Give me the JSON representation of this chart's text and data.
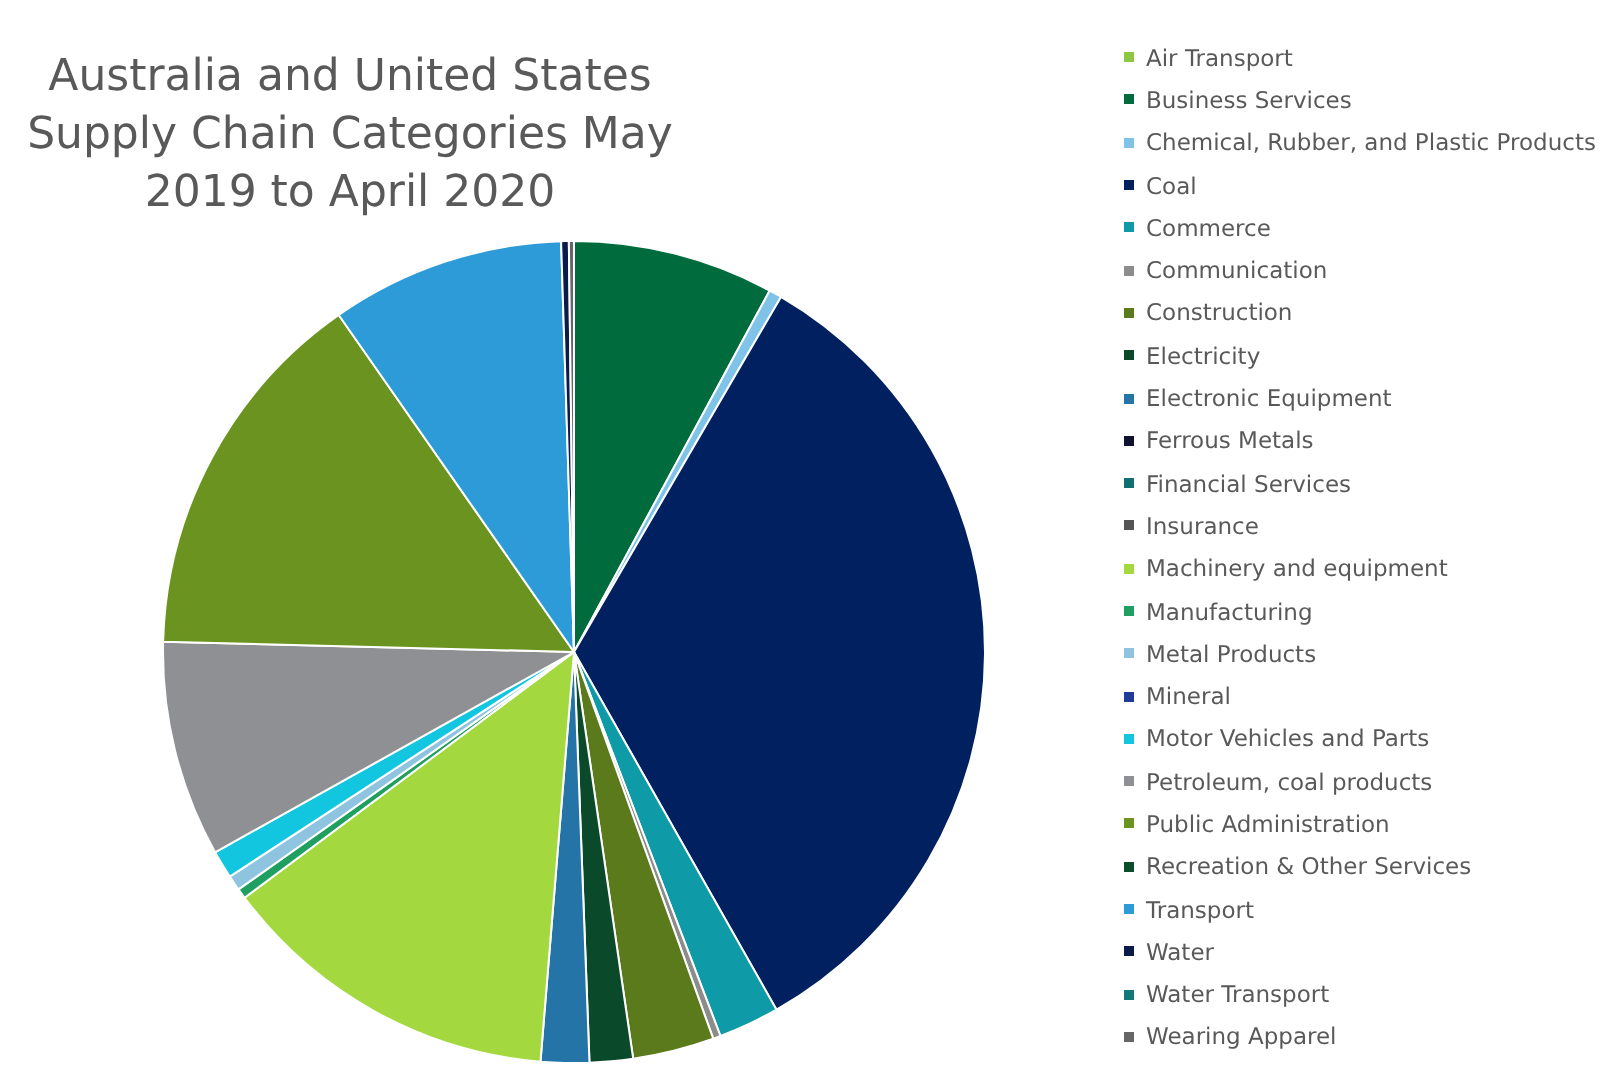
{
  "chart_data": {
    "type": "pie",
    "title": "Australia and United States Supply Chain Categories May 2019 to April 2020",
    "categories": [
      "Air Transport",
      "Business Services",
      "Chemical, Rubber, and Plastic Products",
      "Coal",
      "Commerce",
      "Communication",
      "Construction",
      "Electricity",
      "Electronic Equipment",
      "Ferrous Metals",
      "Financial Services",
      "Insurance",
      "Machinery and equipment",
      "Manufacturing",
      "Metal Products",
      "Mineral",
      "Motor Vehicles and Parts",
      "Petroleum, coal products",
      "Public Administration",
      "Recreation & Other Services",
      "Transport",
      "Water",
      "Water Transport",
      "Wearing Apparel"
    ],
    "values": [
      0,
      7.9,
      0.5,
      33.4,
      2.4,
      0.3,
      3.2,
      1.7,
      1.9,
      0,
      0,
      0,
      13.5,
      0.4,
      0.6,
      0,
      1.1,
      8.5,
      14.9,
      0,
      9.2,
      0.3,
      0,
      0.2
    ],
    "colors": [
      "#8dc63f",
      "#006b3c",
      "#7fc4e8",
      "#002060",
      "#0f9aa8",
      "#8c8c8c",
      "#5a7a1c",
      "#0a4a2a",
      "#2474a8",
      "#101030",
      "#107070",
      "#555555",
      "#a3d93f",
      "#20a060",
      "#8ec4e0",
      "#1f3c99",
      "#12c6e0",
      "#8e9093",
      "#6b9320",
      "#0b4f2a",
      "#2e9bd9",
      "#0a1a4a",
      "#127878",
      "#666666"
    ],
    "legend": "right"
  }
}
